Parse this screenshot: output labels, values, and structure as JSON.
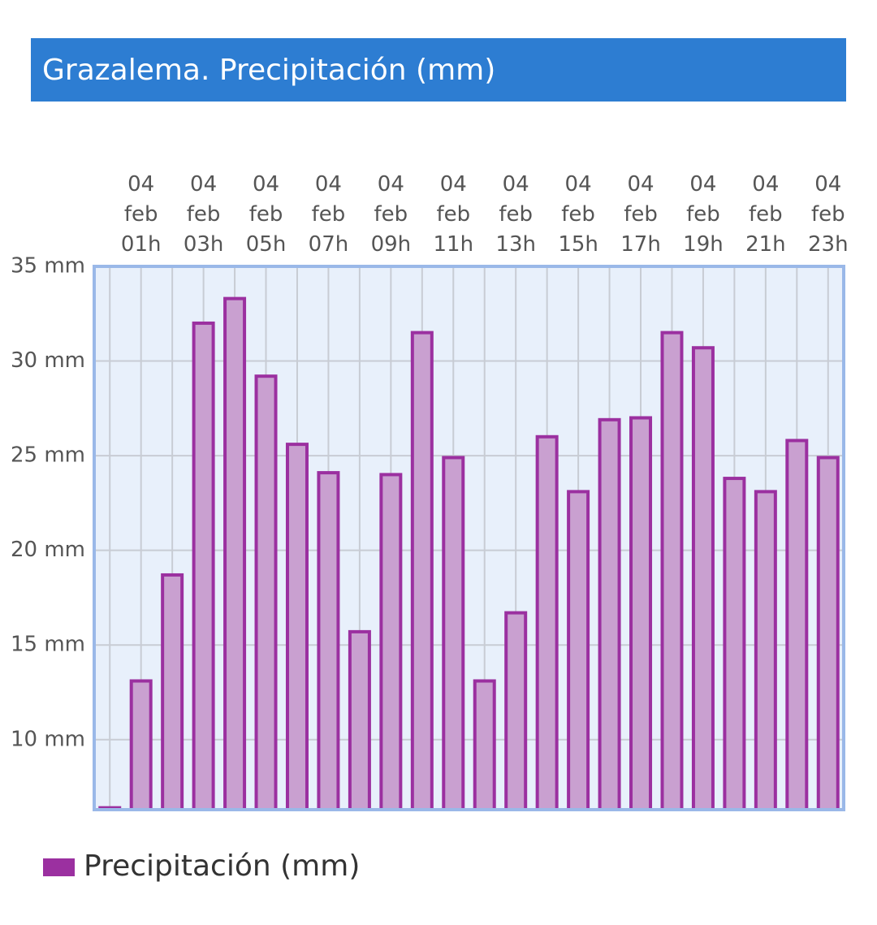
{
  "chart_data": {
    "type": "bar",
    "title": "Grazalema. Precipitación (mm)",
    "categories": [
      null,
      "04 feb 01h",
      null,
      "04 feb 03h",
      null,
      "04 feb 05h",
      null,
      "04 feb 07h",
      null,
      "04 feb 09h",
      null,
      "04 feb 11h",
      null,
      "04 feb 13h",
      null,
      "04 feb 15h",
      null,
      "04 feb 17h",
      null,
      "04 feb 19h",
      null,
      "04 feb 21h",
      null,
      "04 feb 23h"
    ],
    "series": [
      {
        "name": "Precipitación (mm)",
        "color": "#9b30a0",
        "values": [
          6.4,
          13.1,
          18.7,
          32.0,
          33.3,
          29.2,
          25.6,
          24.1,
          15.7,
          24.0,
          31.5,
          24.9,
          13.1,
          16.7,
          26.0,
          23.1,
          26.9,
          27.0,
          31.5,
          30.7,
          23.8,
          23.1,
          25.8,
          24.9
        ]
      }
    ],
    "ylim": [
      6.3,
      35
    ],
    "yticks": [
      {
        "value": 10,
        "label": "10 mm"
      },
      {
        "value": 15,
        "label": "15 mm"
      },
      {
        "value": 20,
        "label": "20 mm"
      },
      {
        "value": 25,
        "label": "25 mm"
      },
      {
        "value": 30,
        "label": "30 mm"
      },
      {
        "value": 35,
        "label": "35 mm"
      }
    ],
    "grid": true,
    "legend": "bottom-left"
  }
}
